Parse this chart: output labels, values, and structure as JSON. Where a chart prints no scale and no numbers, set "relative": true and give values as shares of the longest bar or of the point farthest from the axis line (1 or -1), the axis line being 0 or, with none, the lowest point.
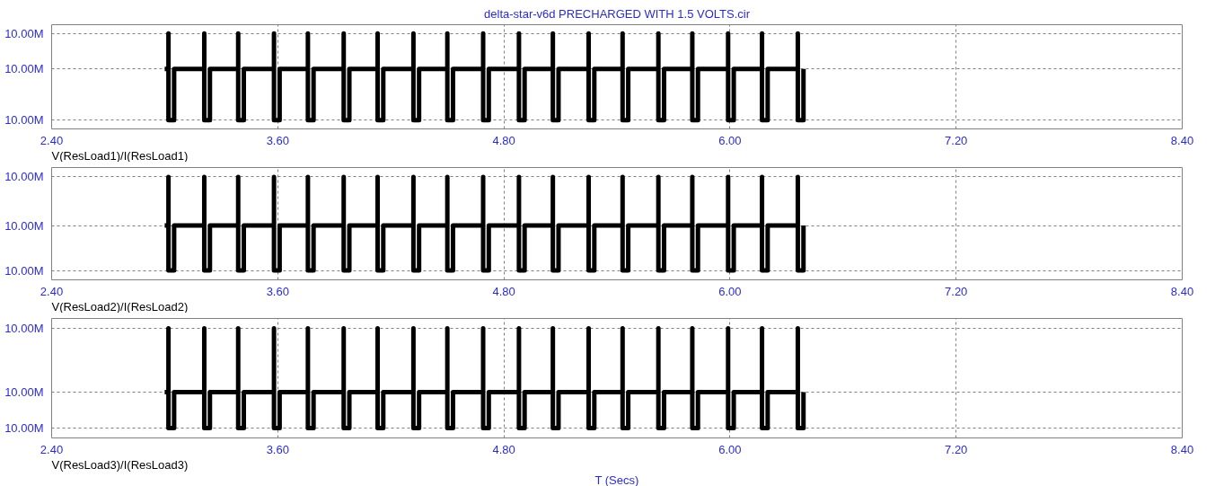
{
  "chart_data": [
    {
      "type": "line",
      "title": "delta-star-v6d PRECHARGED WITH 1.5 VOLTS.cir",
      "relative": true,
      "grid": true,
      "x": [
        3.0,
        3.02,
        3.02,
        3.02,
        3.05,
        3.05,
        3.21,
        3.21,
        3.21,
        3.24,
        3.24,
        3.39,
        3.39,
        3.39,
        3.42,
        3.42,
        3.58,
        3.58,
        3.58,
        3.61,
        3.61,
        3.76,
        3.76,
        3.76,
        3.79,
        3.79,
        3.95,
        3.95,
        3.95,
        3.98,
        3.98,
        4.13,
        4.13,
        4.13,
        4.16,
        4.16,
        4.32,
        4.32,
        4.32,
        4.35,
        4.35,
        4.5,
        4.5,
        4.5,
        4.53,
        4.53,
        4.69,
        4.69,
        4.69,
        4.72,
        4.72,
        4.88,
        4.88,
        4.88,
        4.91,
        4.91,
        5.06,
        5.06,
        5.06,
        5.09,
        5.09,
        5.25,
        5.25,
        5.25,
        5.28,
        5.28,
        5.43,
        5.43,
        5.43,
        5.46,
        5.46,
        5.62,
        5.62,
        5.62,
        5.65,
        5.65,
        5.8,
        5.8,
        5.8,
        5.83,
        5.83,
        5.99,
        5.99,
        5.99,
        6.02,
        6.02,
        6.17,
        6.17,
        6.17,
        6.2,
        6.2,
        6.36,
        6.36,
        6.36,
        6.39,
        6.39
      ],
      "series": [
        {
          "color": "#000000",
          "values": [
            0.59,
            0.59,
            1,
            0,
            0,
            0.59,
            0.59,
            1,
            0,
            0,
            0.59,
            0.59,
            1,
            0,
            0,
            0.59,
            0.59,
            1,
            0,
            0,
            0.59,
            0.59,
            1,
            0,
            0,
            0.59,
            0.59,
            1,
            0,
            0,
            0.59,
            0.59,
            1,
            0,
            0,
            0.59,
            0.59,
            1,
            0,
            0,
            0.59,
            0.59,
            1,
            0,
            0,
            0.59,
            0.59,
            1,
            0,
            0,
            0.59,
            0.59,
            1,
            0,
            0,
            0.59,
            0.59,
            1,
            0,
            0,
            0.59,
            0.59,
            1,
            0,
            0,
            0.59,
            0.59,
            1,
            0,
            0,
            0.59,
            0.59,
            1,
            0,
            0,
            0.59,
            0.59,
            1,
            0,
            0,
            0.59,
            0.59,
            1,
            0,
            0,
            0.59,
            0.59,
            1,
            0,
            0,
            0.59,
            0.59,
            1,
            0,
            0,
            0.59
          ]
        }
      ],
      "xlim": [
        2.4,
        8.4
      ],
      "xticks": [
        {
          "value": 2.4,
          "label": "2.40"
        },
        {
          "value": 3.6,
          "label": "3.60"
        },
        {
          "value": 4.8,
          "label": "4.80"
        },
        {
          "value": 6.0,
          "label": "6.00"
        },
        {
          "value": 7.2,
          "label": "7.20"
        },
        {
          "value": 8.4,
          "label": "8.40"
        }
      ],
      "annotations": [
        "V(ResLoad1)/I(ResLoad1)",
        "10.00M",
        "10.00M",
        "10.00M"
      ]
    },
    {
      "type": "line",
      "relative": true,
      "grid": true,
      "x": [
        3.0,
        3.02,
        3.02,
        3.02,
        3.05,
        3.05,
        3.21,
        3.21,
        3.21,
        3.24,
        3.24,
        3.39,
        3.39,
        3.39,
        3.42,
        3.42,
        3.58,
        3.58,
        3.58,
        3.61,
        3.61,
        3.76,
        3.76,
        3.76,
        3.79,
        3.79,
        3.95,
        3.95,
        3.95,
        3.98,
        3.98,
        4.13,
        4.13,
        4.13,
        4.16,
        4.16,
        4.32,
        4.32,
        4.32,
        4.35,
        4.35,
        4.5,
        4.5,
        4.5,
        4.53,
        4.53,
        4.69,
        4.69,
        4.69,
        4.72,
        4.72,
        4.88,
        4.88,
        4.88,
        4.91,
        4.91,
        5.06,
        5.06,
        5.06,
        5.09,
        5.09,
        5.25,
        5.25,
        5.25,
        5.28,
        5.28,
        5.43,
        5.43,
        5.43,
        5.46,
        5.46,
        5.62,
        5.62,
        5.62,
        5.65,
        5.65,
        5.8,
        5.8,
        5.8,
        5.83,
        5.83,
        5.99,
        5.99,
        5.99,
        6.02,
        6.02,
        6.17,
        6.17,
        6.17,
        6.2,
        6.2,
        6.36,
        6.36,
        6.36,
        6.39,
        6.39
      ],
      "series": [
        {
          "color": "#000000",
          "values": [
            0.48,
            0.48,
            1,
            0,
            0,
            0.48,
            0.48,
            1,
            0,
            0,
            0.48,
            0.48,
            1,
            0,
            0,
            0.48,
            0.48,
            1,
            0,
            0,
            0.48,
            0.48,
            1,
            0,
            0,
            0.48,
            0.48,
            1,
            0,
            0,
            0.48,
            0.48,
            1,
            0,
            0,
            0.48,
            0.48,
            1,
            0,
            0,
            0.48,
            0.48,
            1,
            0,
            0,
            0.48,
            0.48,
            1,
            0,
            0,
            0.48,
            0.48,
            1,
            0,
            0,
            0.48,
            0.48,
            1,
            0,
            0,
            0.48,
            0.48,
            1,
            0,
            0,
            0.48,
            0.48,
            1,
            0,
            0,
            0.48,
            0.48,
            1,
            0,
            0,
            0.48,
            0.48,
            1,
            0,
            0,
            0.48,
            0.48,
            1,
            0,
            0,
            0.48,
            0.48,
            1,
            0,
            0,
            0.48,
            0.48,
            1,
            0,
            0,
            0.48
          ]
        }
      ],
      "xlim": [
        2.4,
        8.4
      ],
      "xticks": [
        {
          "value": 2.4,
          "label": "2.40"
        },
        {
          "value": 3.6,
          "label": "3.60"
        },
        {
          "value": 4.8,
          "label": "4.80"
        },
        {
          "value": 6.0,
          "label": "6.00"
        },
        {
          "value": 7.2,
          "label": "7.20"
        },
        {
          "value": 8.4,
          "label": "8.40"
        }
      ],
      "annotations": [
        "V(ResLoad2)/I(ResLoad2)",
        "10.00M",
        "10.00M",
        "10.00M"
      ]
    },
    {
      "type": "line",
      "xlabel": "T (Secs)",
      "relative": true,
      "grid": true,
      "x": [
        3.0,
        3.02,
        3.02,
        3.02,
        3.05,
        3.05,
        3.21,
        3.21,
        3.21,
        3.24,
        3.24,
        3.39,
        3.39,
        3.39,
        3.42,
        3.42,
        3.58,
        3.58,
        3.58,
        3.61,
        3.61,
        3.76,
        3.76,
        3.76,
        3.79,
        3.79,
        3.95,
        3.95,
        3.95,
        3.98,
        3.98,
        4.13,
        4.13,
        4.13,
        4.16,
        4.16,
        4.32,
        4.32,
        4.32,
        4.35,
        4.35,
        4.5,
        4.5,
        4.5,
        4.53,
        4.53,
        4.69,
        4.69,
        4.69,
        4.72,
        4.72,
        4.88,
        4.88,
        4.88,
        4.91,
        4.91,
        5.06,
        5.06,
        5.06,
        5.09,
        5.09,
        5.25,
        5.25,
        5.25,
        5.28,
        5.28,
        5.43,
        5.43,
        5.43,
        5.46,
        5.46,
        5.62,
        5.62,
        5.62,
        5.65,
        5.65,
        5.8,
        5.8,
        5.8,
        5.83,
        5.83,
        5.99,
        5.99,
        5.99,
        6.02,
        6.02,
        6.17,
        6.17,
        6.17,
        6.2,
        6.2,
        6.36,
        6.36,
        6.36,
        6.39,
        6.39
      ],
      "series": [
        {
          "color": "#000000",
          "values": [
            0.36,
            0.36,
            1,
            0,
            0,
            0.36,
            0.36,
            1,
            0,
            0,
            0.36,
            0.36,
            1,
            0,
            0,
            0.36,
            0.36,
            1,
            0,
            0,
            0.36,
            0.36,
            1,
            0,
            0,
            0.36,
            0.36,
            1,
            0,
            0,
            0.36,
            0.36,
            1,
            0,
            0,
            0.36,
            0.36,
            1,
            0,
            0,
            0.36,
            0.36,
            1,
            0,
            0,
            0.36,
            0.36,
            1,
            0,
            0,
            0.36,
            0.36,
            1,
            0,
            0,
            0.36,
            0.36,
            1,
            0,
            0,
            0.36,
            0.36,
            1,
            0,
            0,
            0.36,
            0.36,
            1,
            0,
            0,
            0.36,
            0.36,
            1,
            0,
            0,
            0.36,
            0.36,
            1,
            0,
            0,
            0.36,
            0.36,
            1,
            0,
            0,
            0.36,
            0.36,
            1,
            0,
            0,
            0.36,
            0.36,
            1,
            0,
            0,
            0.36
          ]
        }
      ],
      "xlim": [
        2.4,
        8.4
      ],
      "xticks": [
        {
          "value": 2.4,
          "label": "2.40"
        },
        {
          "value": 3.6,
          "label": "3.60"
        },
        {
          "value": 4.8,
          "label": "4.80"
        },
        {
          "value": 6.0,
          "label": "6.00"
        },
        {
          "value": 7.2,
          "label": "7.20"
        },
        {
          "value": 8.4,
          "label": "8.40"
        }
      ],
      "annotations": [
        "V(ResLoad3)/I(ResLoad3)",
        "10.00M",
        "10.00M",
        "10.00M"
      ]
    }
  ]
}
